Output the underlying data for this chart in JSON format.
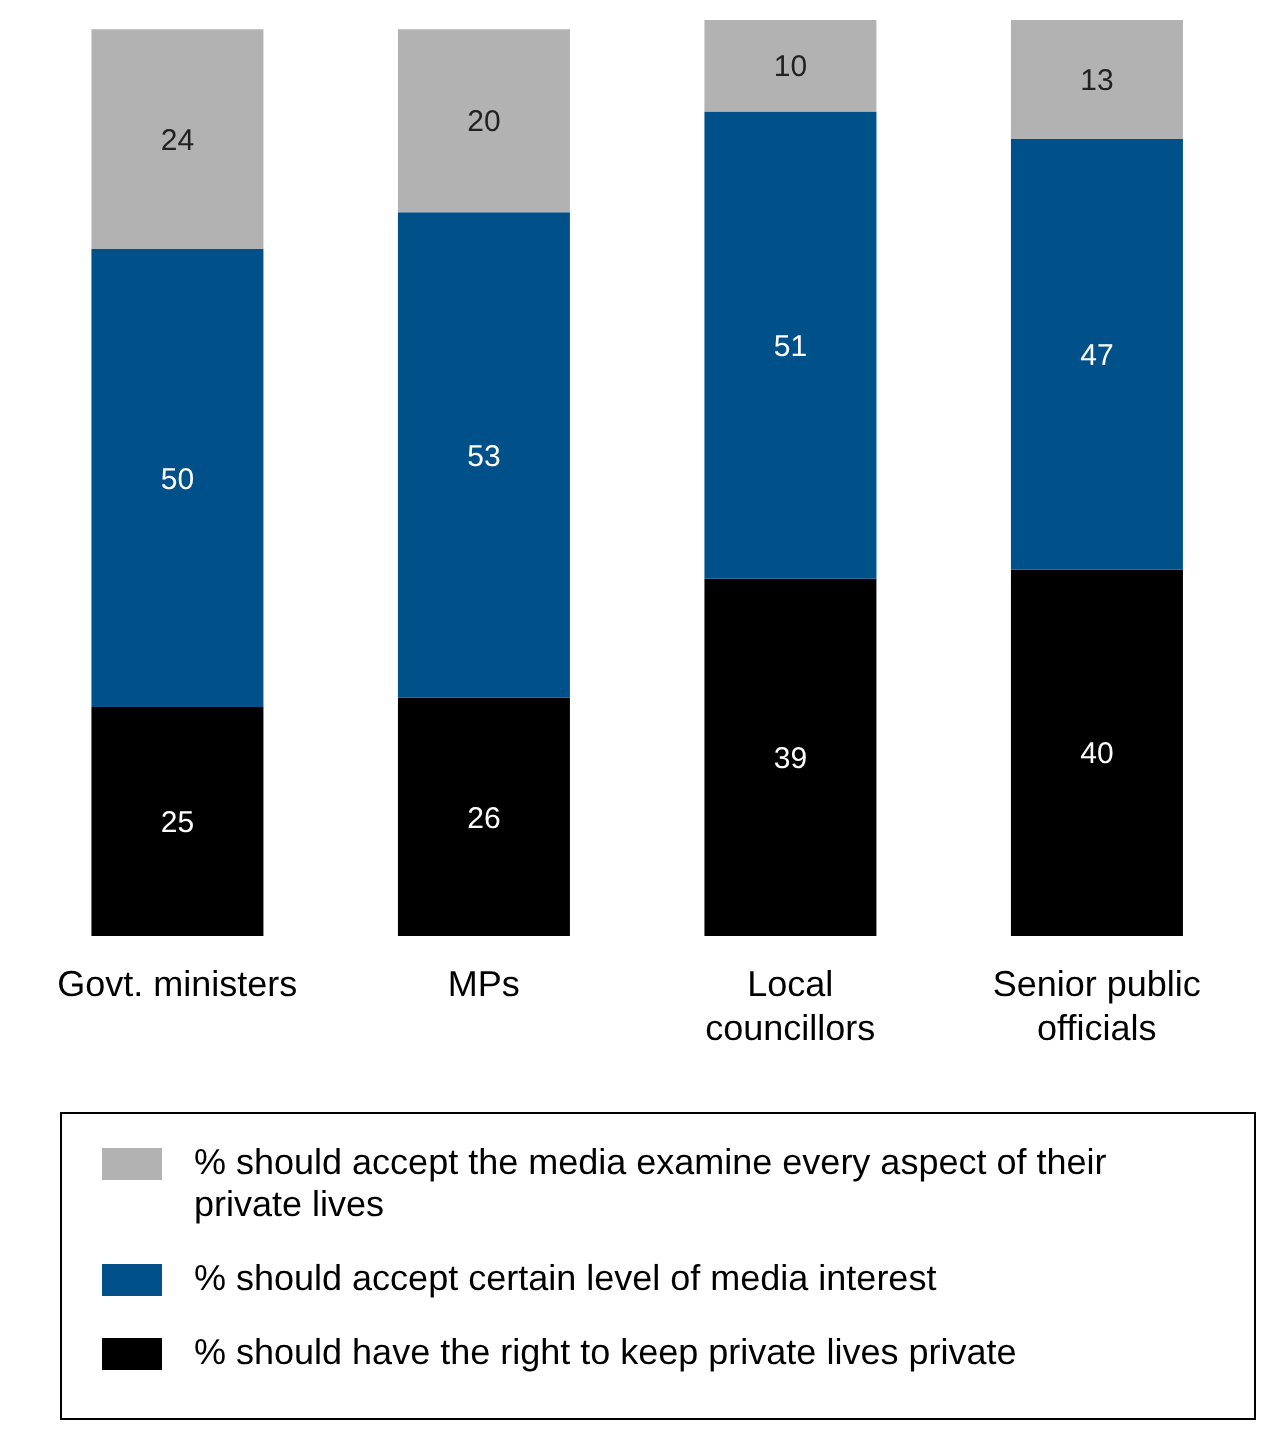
{
  "chart_data": {
    "type": "bar",
    "stacked": true,
    "categories": [
      "Govt. ministers",
      "MPs",
      "Local councillors",
      "Senior public officials"
    ],
    "series": [
      {
        "name": "% should have the right to keep private lives private",
        "color": "#000000",
        "values": [
          25,
          26,
          39,
          40
        ]
      },
      {
        "name": "% should accept certain level of media interest",
        "color": "#00518a",
        "values": [
          50,
          53,
          51,
          47
        ]
      },
      {
        "name": "% should accept the media examine every aspect of their private lives",
        "color": "#b2b2b2",
        "values": [
          24,
          20,
          10,
          13
        ]
      }
    ],
    "data_labels": true,
    "legend": "bottom",
    "tick_labels": "x"
  }
}
